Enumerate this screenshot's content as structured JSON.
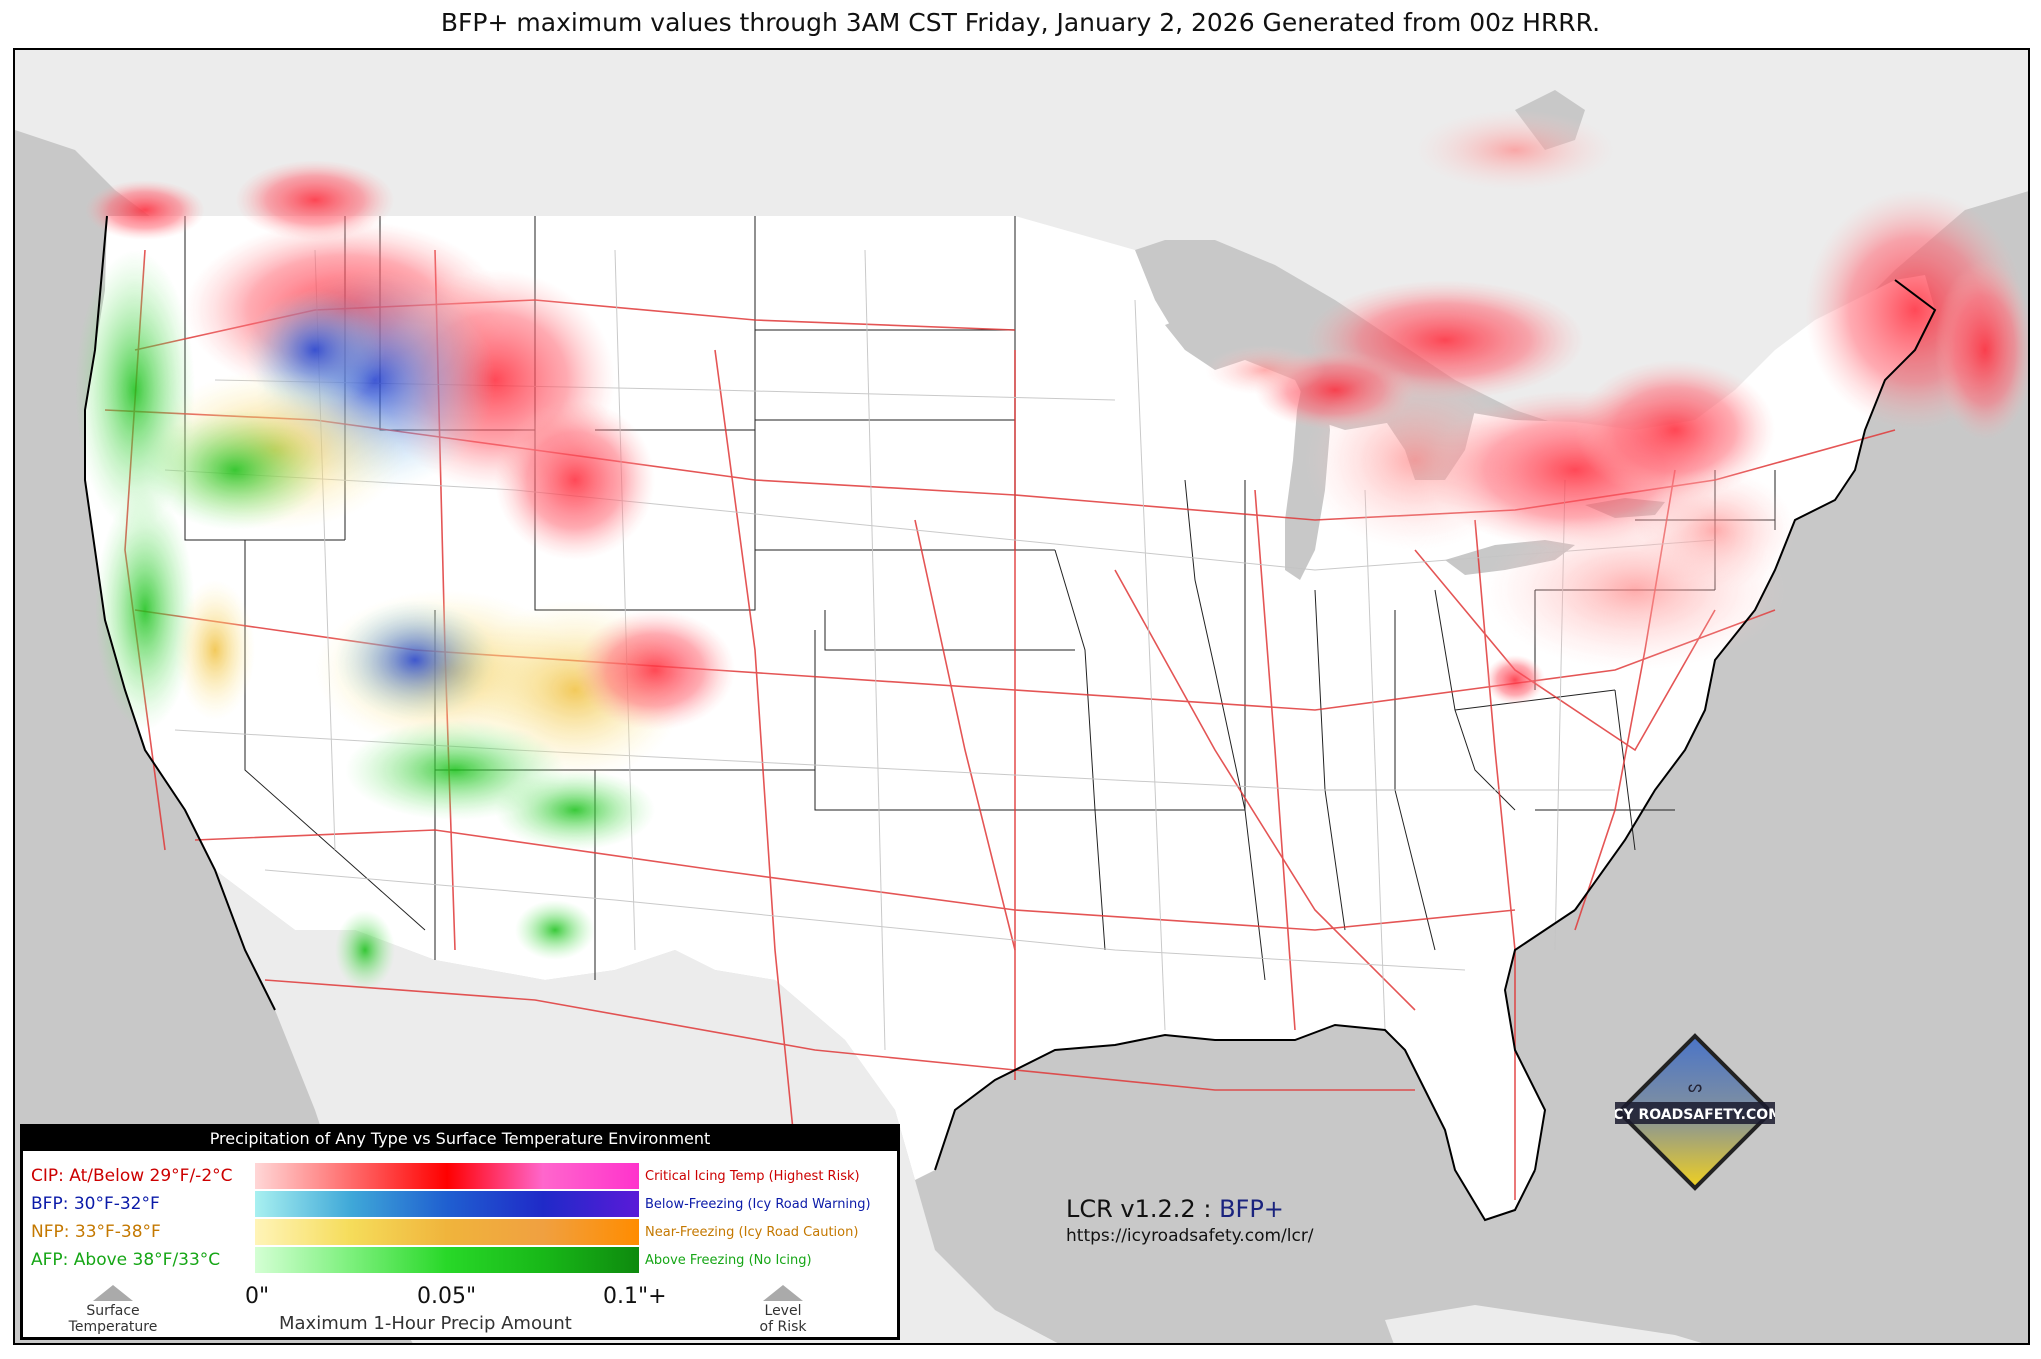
{
  "title": "BFP+ maximum values through 3AM CST Friday, January 2, 2026 Generated from 00z HRRR.",
  "map": {
    "icons": {
      "logo": "icy-road-safety-logo",
      "surface_temperature_arrow": "triangle-up-icon",
      "level_of_risk_arrow": "triangle-up-icon"
    },
    "colors": {
      "water": "#c8c8c8",
      "land_outside_us": "#ececec",
      "land_us": "#ffffff",
      "highways": "#e03838",
      "roads": "#c4c4c4"
    }
  },
  "legend": {
    "header": "Precipitation of Any Type vs Surface Temperature Environment",
    "rows": [
      {
        "label": "CIP: At/Below 29°F/-2°C",
        "description": "Critical Icing Temp (Highest Risk)",
        "color": "#cc0000",
        "gradient": [
          "#ffd7d7",
          "#ff6b6b",
          "#ff0000",
          "#ff66cc",
          "#ff33cc"
        ]
      },
      {
        "label": "BFP: 30°F-32°F",
        "description": "Below-Freezing (Icy Road Warning)",
        "color": "#0a1aa8",
        "gradient": [
          "#a8f0f0",
          "#3fa8d8",
          "#1f5fd0",
          "#1f2ac8",
          "#5a1ad8"
        ]
      },
      {
        "label": "NFP: 33°F-38°F",
        "description": "Near-Freezing (Icy Road Caution)",
        "color": "#c47800",
        "gradient": [
          "#fff4b8",
          "#f5dc5a",
          "#f0b43c",
          "#f0a040",
          "#ff8c00"
        ]
      },
      {
        "label": "AFP: Above 38°F/33°C",
        "description": "Above Freezing (No Icing)",
        "color": "#16a616",
        "gradient": [
          "#d4ffd4",
          "#7cf07c",
          "#28d828",
          "#18b818",
          "#0e8a0e"
        ]
      }
    ],
    "ticks": [
      "0\"",
      "0.05\"",
      "0.1\"+"
    ],
    "axis_caption": "Maximum 1-Hour Precip Amount",
    "left_caption": [
      "Surface",
      "Temperature"
    ],
    "right_caption": [
      "Level",
      "of Risk"
    ]
  },
  "product": {
    "version": "LCR v1.2.2 :",
    "name": "BFP+",
    "url": "https://icyroadsafety.com/lcr/"
  },
  "logo": {
    "text": "ICY ROADSAFETY.COM"
  }
}
